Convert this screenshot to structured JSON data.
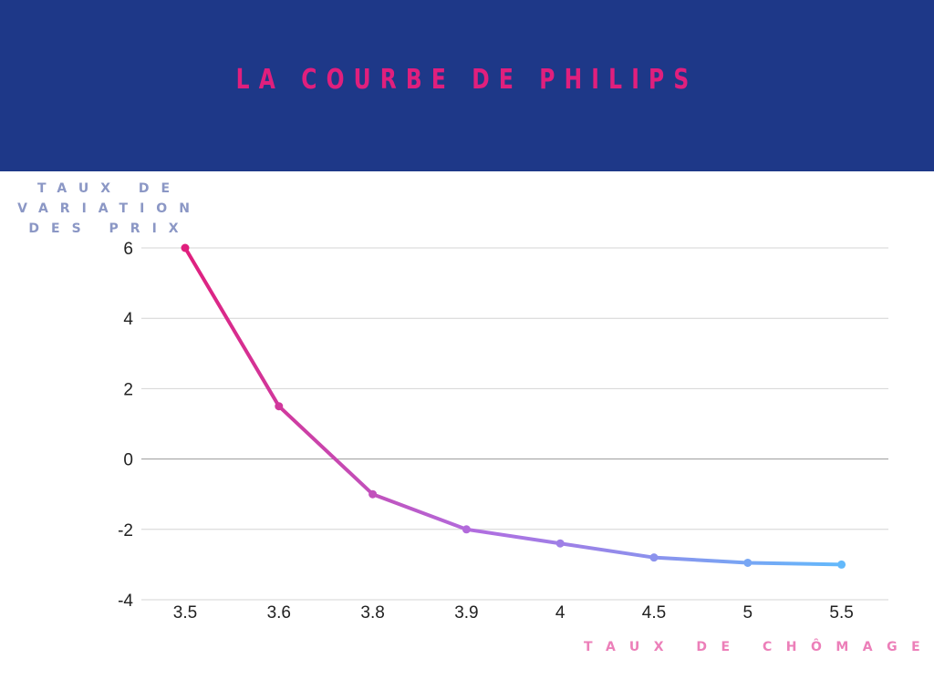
{
  "header": {
    "title": "LA COURBE DE PHILIPS"
  },
  "chart_data": {
    "type": "line",
    "title": "LA COURBE DE PHILIPS",
    "ylabel_lines": [
      "TAUX DE",
      "VARIATION",
      "DES PRIX"
    ],
    "xlabel": "TAUX DE CHÔMAGE",
    "categories": [
      "3.5",
      "3.6",
      "3.8",
      "3.9",
      "4",
      "4.5",
      "5",
      "5.5"
    ],
    "series": [
      {
        "values": [
          6,
          1.5,
          -1,
          -2,
          -2.4,
          -2.8,
          -2.95,
          -3
        ]
      }
    ],
    "ylim": [
      -4,
      6
    ],
    "yticks": [
      "-4",
      "-2",
      "0",
      "2",
      "4",
      "6"
    ],
    "grid": true,
    "colors": {
      "start": "#e01f7d",
      "mid": "#b06ee0",
      "end": "#63b9fb",
      "header": "#1e3888"
    }
  }
}
